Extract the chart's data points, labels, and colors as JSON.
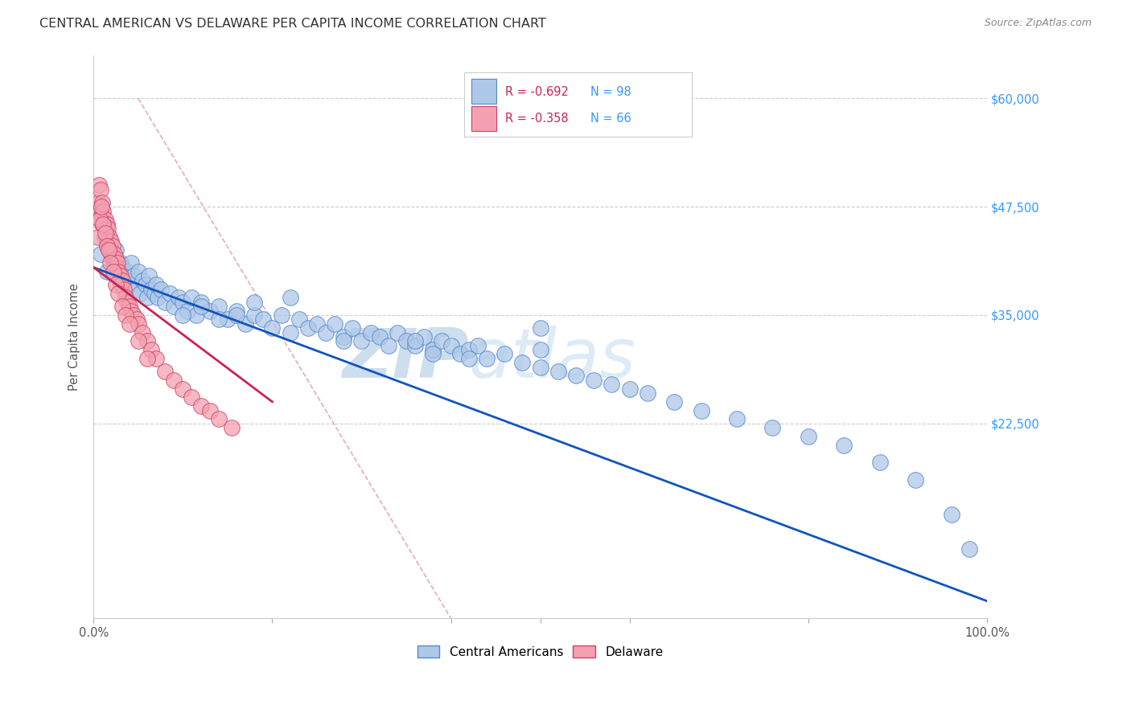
{
  "title": "CENTRAL AMERICAN VS DELAWARE PER CAPITA INCOME CORRELATION CHART",
  "source": "Source: ZipAtlas.com",
  "ylabel": "Per Capita Income",
  "xlim": [
    0,
    1.0
  ],
  "ylim": [
    0,
    65000
  ],
  "yticks": [
    0,
    22500,
    35000,
    47500,
    60000
  ],
  "ytick_labels": [
    "",
    "$22,500",
    "$35,000",
    "$47,500",
    "$60,000"
  ],
  "xticks": [
    0.0,
    0.2,
    0.4,
    0.5,
    0.6,
    0.8,
    1.0
  ],
  "xtick_labels": [
    "0.0%",
    "",
    "",
    "",
    "",
    "",
    "100.0%"
  ],
  "blue_color": "#aec8e8",
  "pink_color": "#f4a0b0",
  "blue_edge": "#5588cc",
  "pink_edge": "#cc4466",
  "trend_blue": "#1155bb",
  "trend_pink": "#cc2255",
  "ref_line_color": "#e8aabb",
  "watermark_color": "#c8dff0",
  "background": "#ffffff",
  "grid_color": "#cccccc",
  "ytick_color": "#3399ff",
  "blue_scatter_x": [
    0.008,
    0.012,
    0.015,
    0.018,
    0.022,
    0.025,
    0.028,
    0.03,
    0.032,
    0.035,
    0.038,
    0.04,
    0.042,
    0.045,
    0.048,
    0.05,
    0.052,
    0.055,
    0.058,
    0.06,
    0.062,
    0.065,
    0.068,
    0.07,
    0.072,
    0.075,
    0.08,
    0.085,
    0.09,
    0.095,
    0.1,
    0.105,
    0.11,
    0.115,
    0.12,
    0.13,
    0.14,
    0.15,
    0.16,
    0.17,
    0.18,
    0.19,
    0.2,
    0.21,
    0.22,
    0.23,
    0.24,
    0.25,
    0.26,
    0.27,
    0.28,
    0.29,
    0.3,
    0.31,
    0.32,
    0.33,
    0.34,
    0.35,
    0.36,
    0.37,
    0.38,
    0.39,
    0.4,
    0.41,
    0.42,
    0.43,
    0.44,
    0.46,
    0.48,
    0.5,
    0.52,
    0.54,
    0.56,
    0.58,
    0.6,
    0.62,
    0.65,
    0.68,
    0.72,
    0.76,
    0.8,
    0.84,
    0.88,
    0.92,
    0.96,
    0.98,
    0.5,
    0.5,
    0.38,
    0.42,
    0.22,
    0.18,
    0.1,
    0.12,
    0.28,
    0.36,
    0.14,
    0.16
  ],
  "blue_scatter_y": [
    42000,
    44000,
    40000,
    43000,
    41000,
    42500,
    39500,
    41000,
    40500,
    39000,
    40000,
    38500,
    41000,
    39500,
    38000,
    40000,
    37500,
    39000,
    38500,
    37000,
    39500,
    38000,
    37500,
    38500,
    37000,
    38000,
    36500,
    37500,
    36000,
    37000,
    36500,
    35500,
    37000,
    35000,
    36500,
    35500,
    36000,
    34500,
    35500,
    34000,
    35000,
    34500,
    33500,
    35000,
    33000,
    34500,
    33500,
    34000,
    33000,
    34000,
    32500,
    33500,
    32000,
    33000,
    32500,
    31500,
    33000,
    32000,
    31500,
    32500,
    31000,
    32000,
    31500,
    30500,
    31000,
    31500,
    30000,
    30500,
    29500,
    29000,
    28500,
    28000,
    27500,
    27000,
    26500,
    26000,
    25000,
    24000,
    23000,
    22000,
    21000,
    20000,
    18000,
    16000,
    12000,
    8000,
    31000,
    33500,
    30500,
    30000,
    37000,
    36500,
    35000,
    36000,
    32000,
    32000,
    34500,
    35000
  ],
  "pink_scatter_x": [
    0.005,
    0.006,
    0.007,
    0.008,
    0.009,
    0.01,
    0.01,
    0.011,
    0.012,
    0.013,
    0.014,
    0.015,
    0.015,
    0.016,
    0.017,
    0.018,
    0.019,
    0.02,
    0.02,
    0.021,
    0.022,
    0.023,
    0.024,
    0.025,
    0.026,
    0.027,
    0.028,
    0.03,
    0.03,
    0.032,
    0.034,
    0.036,
    0.038,
    0.04,
    0.042,
    0.045,
    0.048,
    0.05,
    0.055,
    0.06,
    0.065,
    0.07,
    0.08,
    0.09,
    0.1,
    0.11,
    0.12,
    0.13,
    0.14,
    0.155,
    0.005,
    0.007,
    0.009,
    0.011,
    0.013,
    0.015,
    0.017,
    0.019,
    0.022,
    0.025,
    0.028,
    0.032,
    0.036,
    0.04,
    0.05,
    0.06
  ],
  "pink_scatter_y": [
    48000,
    50000,
    47000,
    49500,
    46500,
    48000,
    45500,
    47000,
    45000,
    46000,
    44000,
    45500,
    43500,
    45000,
    43000,
    44000,
    42500,
    43500,
    42000,
    43000,
    41500,
    42000,
    41000,
    41500,
    40500,
    41000,
    40000,
    39500,
    38500,
    39000,
    38000,
    37000,
    36500,
    36000,
    35500,
    35000,
    34500,
    34000,
    33000,
    32000,
    31000,
    30000,
    28500,
    27500,
    26500,
    25500,
    24500,
    24000,
    23000,
    22000,
    44000,
    46000,
    47500,
    45500,
    44500,
    43000,
    42500,
    41000,
    40000,
    38500,
    37500,
    36000,
    35000,
    34000,
    32000,
    30000
  ],
  "blue_trend_x": [
    0.0,
    1.0
  ],
  "blue_trend_y": [
    40500,
    2000
  ],
  "pink_trend_x": [
    0.0,
    0.2
  ],
  "pink_trend_y": [
    40500,
    25000
  ],
  "ref_line_x": [
    0.05,
    0.4
  ],
  "ref_line_y": [
    60000,
    0
  ]
}
